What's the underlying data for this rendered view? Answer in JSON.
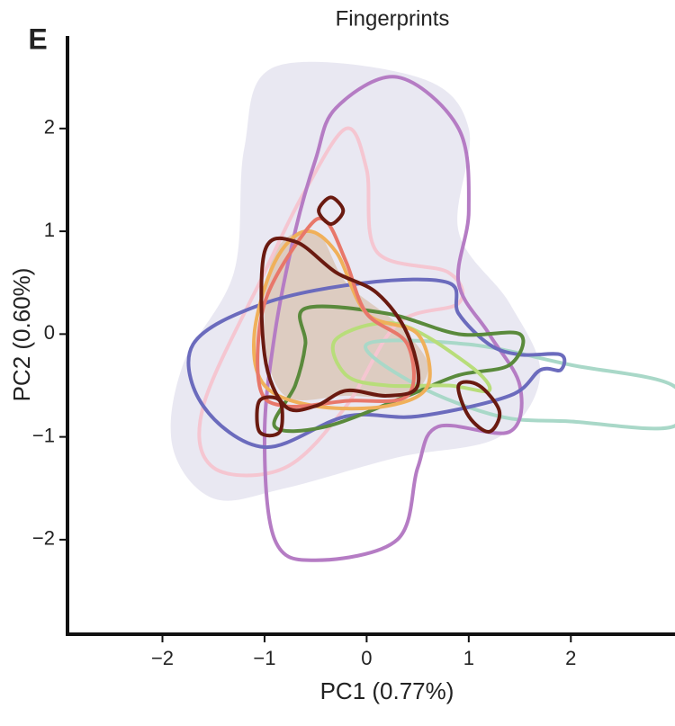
{
  "chart_data": {
    "type": "contour",
    "panel": "E",
    "title": "Fingerprints",
    "xlabel": "PC1 (0.77%)",
    "ylabel": "PC2 (0.60%)",
    "xlim": [
      -2.93,
      3.02
    ],
    "ylim": [
      -2.92,
      2.9
    ],
    "xticks": [
      {
        "value": -2,
        "label": "−2"
      },
      {
        "value": -1,
        "label": "−1"
      },
      0,
      1,
      2
    ],
    "yticks": [
      {
        "value": -2,
        "label": "−2"
      },
      {
        "value": -1,
        "label": "−1"
      },
      0,
      1,
      2
    ],
    "series": [
      {
        "color": "none",
        "fill": "#e7e5f1",
        "x": [
          -0.9,
          0.5,
          1.0,
          0.9,
          1.4,
          1.7,
          1.3,
          0.3,
          -0.8,
          -1.5,
          -1.9,
          -1.8,
          -1.3,
          -1.2
        ],
        "y": [
          2.6,
          2.5,
          2.0,
          1.0,
          0.3,
          -0.4,
          -1.0,
          -1.2,
          -1.5,
          -1.6,
          -1.1,
          -0.3,
          0.6,
          1.8
        ]
      },
      {
        "color": "none",
        "fill": "#dcc9bb",
        "x": [
          -0.9,
          -0.5,
          -0.2,
          0.3,
          0.6,
          0.4,
          -0.2,
          -0.8,
          -1.0
        ],
        "y": [
          0.8,
          1.0,
          0.5,
          0.1,
          -0.3,
          -0.6,
          -0.6,
          -0.6,
          0.0
        ]
      },
      {
        "color": "#f5c6d1",
        "fill": "none",
        "x": [
          -0.2,
          0.0,
          0.1,
          0.8,
          0.9,
          0.3,
          -0.2,
          -0.8,
          -1.5,
          -1.6,
          -1.0,
          -0.6
        ],
        "y": [
          2.0,
          1.6,
          0.8,
          0.6,
          0.3,
          0.1,
          -0.7,
          -1.3,
          -1.3,
          -0.7,
          0.6,
          1.4
        ]
      },
      {
        "color": "#a9d8c8",
        "fill": "none",
        "x": [
          0.0,
          1.0,
          2.0,
          3.0,
          3.0,
          2.0,
          1.3,
          0.5
        ],
        "y": [
          -0.1,
          -0.1,
          -0.3,
          -0.5,
          -0.9,
          -0.85,
          -0.8,
          -0.5
        ]
      },
      {
        "color": "#b57cc4",
        "fill": "none",
        "x": [
          -0.3,
          0.3,
          0.9,
          1.0,
          0.9,
          1.2,
          1.5,
          1.4,
          0.7,
          0.5,
          0.3,
          -0.5,
          -0.9,
          -1.0,
          -0.9,
          -0.7,
          -0.5
        ],
        "y": [
          2.2,
          2.5,
          2.0,
          1.2,
          0.5,
          0.0,
          -0.5,
          -0.95,
          -0.9,
          -1.3,
          -2.0,
          -2.2,
          -2.0,
          -1.0,
          0.0,
          1.0,
          1.7
        ]
      },
      {
        "color": "#6b6bbd",
        "fill": "none",
        "x": [
          -1.7,
          -1.0,
          0.0,
          0.8,
          0.9,
          1.2,
          1.5,
          1.9,
          1.9,
          1.7,
          1.4,
          0.5,
          -0.2,
          -1.0,
          -1.6
        ],
        "y": [
          -0.1,
          0.3,
          0.5,
          0.5,
          0.2,
          -0.1,
          -0.2,
          -0.2,
          -0.35,
          -0.35,
          -0.6,
          -0.8,
          -0.8,
          -1.1,
          -0.7
        ]
      },
      {
        "color": "#5a8a3c",
        "fill": "none",
        "x": [
          -0.6,
          0.2,
          0.9,
          1.5,
          1.4,
          0.9,
          0.4,
          -0.4,
          -0.9,
          -0.7,
          -0.6
        ],
        "y": [
          0.25,
          0.2,
          0.0,
          0.0,
          -0.3,
          -0.4,
          -0.6,
          -0.9,
          -0.9,
          -0.5,
          -0.1
        ]
      },
      {
        "color": "#b8dd7a",
        "fill": "none",
        "x": [
          -0.3,
          0.3,
          1.0,
          1.2,
          0.8,
          0.2,
          -0.2
        ],
        "y": [
          -0.05,
          0.1,
          -0.3,
          -0.55,
          -0.5,
          -0.5,
          -0.4
        ]
      },
      {
        "color": "#f0b05a",
        "fill": "none",
        "x": [
          -0.9,
          -0.6,
          -0.3,
          0.0,
          0.5,
          0.6,
          0.2,
          -0.5,
          -1.0,
          -1.1
        ],
        "y": [
          0.7,
          1.0,
          0.8,
          0.2,
          0.0,
          -0.5,
          -0.7,
          -0.7,
          -0.5,
          0.0
        ]
      },
      {
        "color": "#e8776a",
        "fill": "none",
        "x": [
          -0.6,
          -0.4,
          -0.2,
          0.0,
          0.4,
          0.4,
          -0.2,
          -0.8,
          -1.05,
          -1.0
        ],
        "y": [
          1.0,
          1.1,
          0.7,
          0.2,
          -0.1,
          -0.6,
          -0.65,
          -0.7,
          -0.5,
          0.3
        ]
      },
      {
        "color": "#6a1a10",
        "fill": "none",
        "x": [
          -1.0,
          -0.7,
          -0.3,
          0.1,
          0.4,
          0.5,
          0.2,
          -0.2,
          -0.5,
          -0.8,
          -1.0
        ],
        "y": [
          0.8,
          0.9,
          0.6,
          0.4,
          0.0,
          -0.5,
          -0.6,
          -0.55,
          -0.7,
          -0.7,
          -0.2
        ]
      },
      {
        "color": "#6a1a10",
        "fill": "none",
        "x": [
          -0.35,
          -0.23,
          -0.35,
          -0.47
        ],
        "y": [
          1.33,
          1.2,
          1.07,
          1.2
        ]
      },
      {
        "color": "#6a1a10",
        "fill": "none",
        "x": [
          0.9,
          1.1,
          1.3,
          1.2,
          1.0
        ],
        "y": [
          -0.5,
          -0.5,
          -0.75,
          -0.95,
          -0.8
        ]
      },
      {
        "color": "#6a1a10",
        "fill": "none",
        "x": [
          -1.05,
          -0.85,
          -0.85,
          -1.05
        ],
        "y": [
          -0.65,
          -0.65,
          -0.95,
          -0.95
        ]
      }
    ]
  }
}
